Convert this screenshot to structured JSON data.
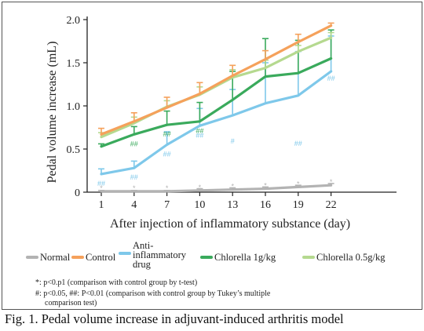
{
  "chart_data": {
    "type": "line",
    "xlabel": "After injection of inflammatory substance (day)",
    "ylabel": "Pedal volume increase (mL)",
    "x": [
      1,
      4,
      7,
      10,
      13,
      16,
      19,
      22
    ],
    "ylim": [
      0,
      2.0
    ],
    "yticks": [
      "0",
      "0.5",
      "1.0",
      "1.5",
      "2.0"
    ],
    "grid": false,
    "legend_position": "bottom",
    "series": [
      {
        "name": "Normal",
        "color": "#b3b3b3",
        "values": [
          0.01,
          0.01,
          0.01,
          0.02,
          0.03,
          0.04,
          0.06,
          0.08
        ],
        "err": [
          0.01,
          0.01,
          0.01,
          0.02,
          0.02,
          0.02,
          0.02,
          0.02
        ],
        "marks": [
          "*",
          "*",
          "*",
          "*",
          "*",
          "*",
          "*",
          "*"
        ]
      },
      {
        "name": "Control",
        "color": "#f5a15b",
        "values": [
          0.67,
          0.82,
          0.98,
          1.14,
          1.35,
          1.54,
          1.74,
          1.93
        ],
        "err": [
          0.07,
          0.1,
          0.12,
          0.13,
          0.12,
          0.1,
          0.09,
          0.03
        ],
        "marks": [
          "",
          "",
          "",
          "",
          "",
          "",
          "",
          ""
        ]
      },
      {
        "name": "Anti-inflammatory drug",
        "color": "#7ec8ea",
        "values": [
          0.21,
          0.28,
          0.55,
          0.77,
          0.89,
          1.03,
          1.12,
          1.4
        ],
        "err": [
          0.06,
          0.08,
          0.15,
          0.2,
          0.3,
          0.47,
          0.51,
          0.41
        ],
        "marks": [
          "##",
          "##",
          "##",
          "##",
          "#",
          "",
          "##",
          "##"
        ]
      },
      {
        "name": "Chlorella 1g/kg",
        "color": "#3aaa5c",
        "values": [
          0.53,
          0.67,
          0.78,
          0.82,
          1.07,
          1.34,
          1.38,
          1.55
        ],
        "err": [
          0.03,
          0.09,
          0.16,
          0.22,
          0.33,
          0.44,
          0.38,
          0.33
        ],
        "marks": [
          "",
          "##",
          "##",
          "##",
          "",
          "",
          "",
          ""
        ]
      },
      {
        "name": "Chlorella 0.5g/kg",
        "color": "#b5d98f",
        "values": [
          0.64,
          0.8,
          0.99,
          1.13,
          1.33,
          1.44,
          1.63,
          1.79
        ],
        "err": [
          0.05,
          0.07,
          0.07,
          0.09,
          0.09,
          0.09,
          0.07,
          0.06
        ],
        "marks": [
          "",
          "",
          "",
          "",
          "",
          "",
          "",
          ""
        ]
      }
    ]
  },
  "notes": [
    "*: p<0.p1 (comparison with control group by t-test)",
    "#: p<0.05, ##: P<0.01 (comparison with control group by Tukey’s multiple",
    "comparison test)"
  ],
  "caption": "Fig. 1. Pedal volume increase in adjuvant-induced arthritis model"
}
